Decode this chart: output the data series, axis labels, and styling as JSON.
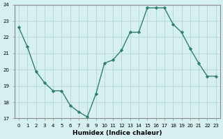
{
  "x": [
    0,
    1,
    2,
    3,
    4,
    5,
    6,
    7,
    8,
    9,
    10,
    11,
    12,
    13,
    14,
    15,
    16,
    17,
    18,
    19,
    20,
    21,
    22,
    23
  ],
  "y": [
    22.6,
    21.4,
    19.9,
    19.2,
    18.7,
    18.7,
    17.8,
    17.4,
    17.1,
    18.5,
    20.4,
    20.6,
    21.2,
    22.3,
    22.3,
    23.8,
    23.8,
    23.8,
    22.8,
    22.3,
    21.3,
    20.4,
    19.6,
    19.6
  ],
  "ylim": [
    17,
    24
  ],
  "yticks": [
    17,
    18,
    19,
    20,
    21,
    22,
    23,
    24
  ],
  "xticks": [
    0,
    1,
    2,
    3,
    4,
    5,
    6,
    7,
    8,
    9,
    10,
    11,
    12,
    13,
    14,
    15,
    16,
    17,
    18,
    19,
    20,
    21,
    22,
    23
  ],
  "xlabel": "Humidex (Indice chaleur)",
  "line_color": "#2e7d6e",
  "marker_color": "#2e7d6e",
  "bg_color": "#d6f0ef",
  "grid_color": "#b8dbd8",
  "spine_color": "#888888"
}
